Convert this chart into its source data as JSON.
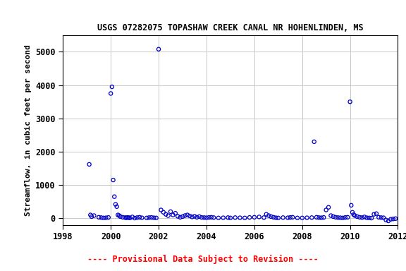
{
  "title": "USGS 07282075 TOPASHAW CREEK CANAL NR HOHENLINDEN, MS",
  "ylabel": "Streamflow, in cubic feet per second",
  "xlim": [
    1998,
    2012
  ],
  "ylim": [
    -200,
    5500
  ],
  "yticks": [
    0,
    1000,
    2000,
    3000,
    4000,
    5000
  ],
  "xticks": [
    1998,
    2000,
    2002,
    2004,
    2006,
    2008,
    2010,
    2012
  ],
  "footnote": "---- Provisional Data Subject to Revision ----",
  "dot_color": "#0000CC",
  "background_color": "#ffffff",
  "grid_color": "#c8c8c8",
  "data_x": [
    1999.1,
    1999.15,
    1999.2,
    1999.3,
    1999.5,
    1999.6,
    1999.7,
    1999.8,
    1999.9,
    2000.0,
    2000.05,
    2000.1,
    2000.15,
    2000.2,
    2000.25,
    2000.3,
    2000.35,
    2000.4,
    2000.5,
    2000.6,
    2000.65,
    2000.7,
    2000.75,
    2000.8,
    2000.9,
    2001.0,
    2001.1,
    2001.2,
    2001.3,
    2001.5,
    2001.6,
    2001.7,
    2001.8,
    2001.9,
    2002.0,
    2002.1,
    2002.2,
    2002.3,
    2002.4,
    2002.5,
    2002.6,
    2002.7,
    2002.8,
    2002.9,
    2003.0,
    2003.1,
    2003.2,
    2003.3,
    2003.4,
    2003.5,
    2003.6,
    2003.7,
    2003.8,
    2003.9,
    2004.0,
    2004.1,
    2004.2,
    2004.3,
    2004.5,
    2004.7,
    2004.9,
    2005.0,
    2005.2,
    2005.4,
    2005.6,
    2005.8,
    2006.0,
    2006.2,
    2006.4,
    2006.5,
    2006.6,
    2006.7,
    2006.8,
    2006.9,
    2007.0,
    2007.2,
    2007.4,
    2007.5,
    2007.6,
    2007.8,
    2008.0,
    2008.2,
    2008.4,
    2008.5,
    2008.6,
    2008.7,
    2008.8,
    2008.9,
    2009.0,
    2009.1,
    2009.2,
    2009.3,
    2009.4,
    2009.5,
    2009.6,
    2009.7,
    2009.8,
    2009.9,
    2010.0,
    2010.05,
    2010.1,
    2010.15,
    2010.2,
    2010.3,
    2010.4,
    2010.5,
    2010.6,
    2010.7,
    2010.8,
    2010.9,
    2011.0,
    2011.1,
    2011.2,
    2011.3,
    2011.4,
    2011.5,
    2011.6,
    2011.7,
    2011.8,
    2011.9
  ],
  "data_y": [
    1620,
    100,
    50,
    80,
    30,
    20,
    10,
    15,
    25,
    3750,
    3950,
    1150,
    650,
    420,
    350,
    100,
    80,
    50,
    30,
    20,
    15,
    25,
    20,
    10,
    40,
    5,
    20,
    30,
    15,
    10,
    20,
    25,
    15,
    10,
    5080,
    250,
    180,
    120,
    80,
    200,
    100,
    150,
    60,
    30,
    50,
    80,
    100,
    70,
    40,
    60,
    30,
    50,
    25,
    20,
    15,
    25,
    30,
    20,
    10,
    15,
    20,
    10,
    20,
    15,
    10,
    25,
    30,
    40,
    20,
    120,
    80,
    50,
    30,
    15,
    10,
    20,
    15,
    25,
    30,
    10,
    10,
    15,
    20,
    2300,
    30,
    20,
    15,
    25,
    250,
    330,
    80,
    50,
    30,
    20,
    15,
    10,
    25,
    30,
    3500,
    390,
    180,
    110,
    80,
    50,
    30,
    20,
    40,
    15,
    10,
    5,
    120,
    140,
    30,
    20,
    15,
    -50,
    -80,
    -30,
    -20,
    -10
  ]
}
